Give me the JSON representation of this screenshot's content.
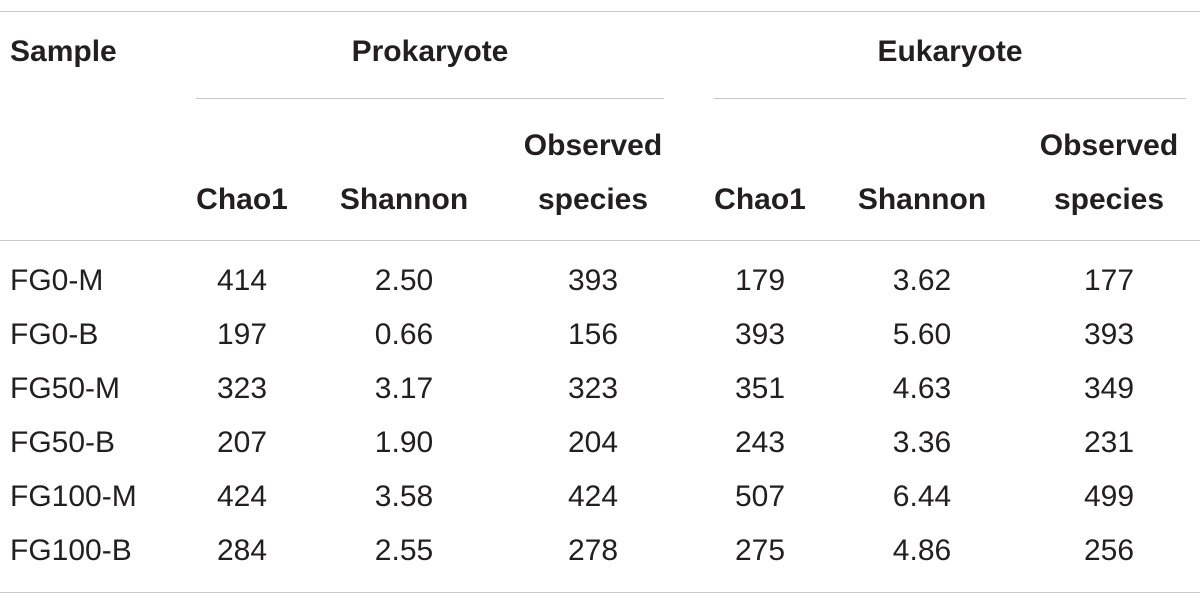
{
  "table": {
    "header": {
      "sample": "Sample",
      "groups": [
        "Prokaryote",
        "Eukaryote"
      ],
      "columns": [
        [
          "Chao1"
        ],
        [
          "Shannon"
        ],
        [
          "Observed",
          "species"
        ],
        [
          "Chao1"
        ],
        [
          "Shannon"
        ],
        [
          "Observed",
          "species"
        ]
      ]
    },
    "rows": [
      [
        "FG0-M",
        "414",
        "2.50",
        "393",
        "179",
        "3.62",
        "177"
      ],
      [
        "FG0-B",
        "197",
        "0.66",
        "156",
        "393",
        "5.60",
        "393"
      ],
      [
        "FG50-M",
        "323",
        "3.17",
        "323",
        "351",
        "4.63",
        "349"
      ],
      [
        "FG50-B",
        "207",
        "1.90",
        "204",
        "243",
        "3.36",
        "231"
      ],
      [
        "FG100-M",
        "424",
        "3.58",
        "424",
        "507",
        "6.44",
        "499"
      ],
      [
        "FG100-B",
        "284",
        "2.55",
        "278",
        "275",
        "4.86",
        "256"
      ]
    ]
  }
}
